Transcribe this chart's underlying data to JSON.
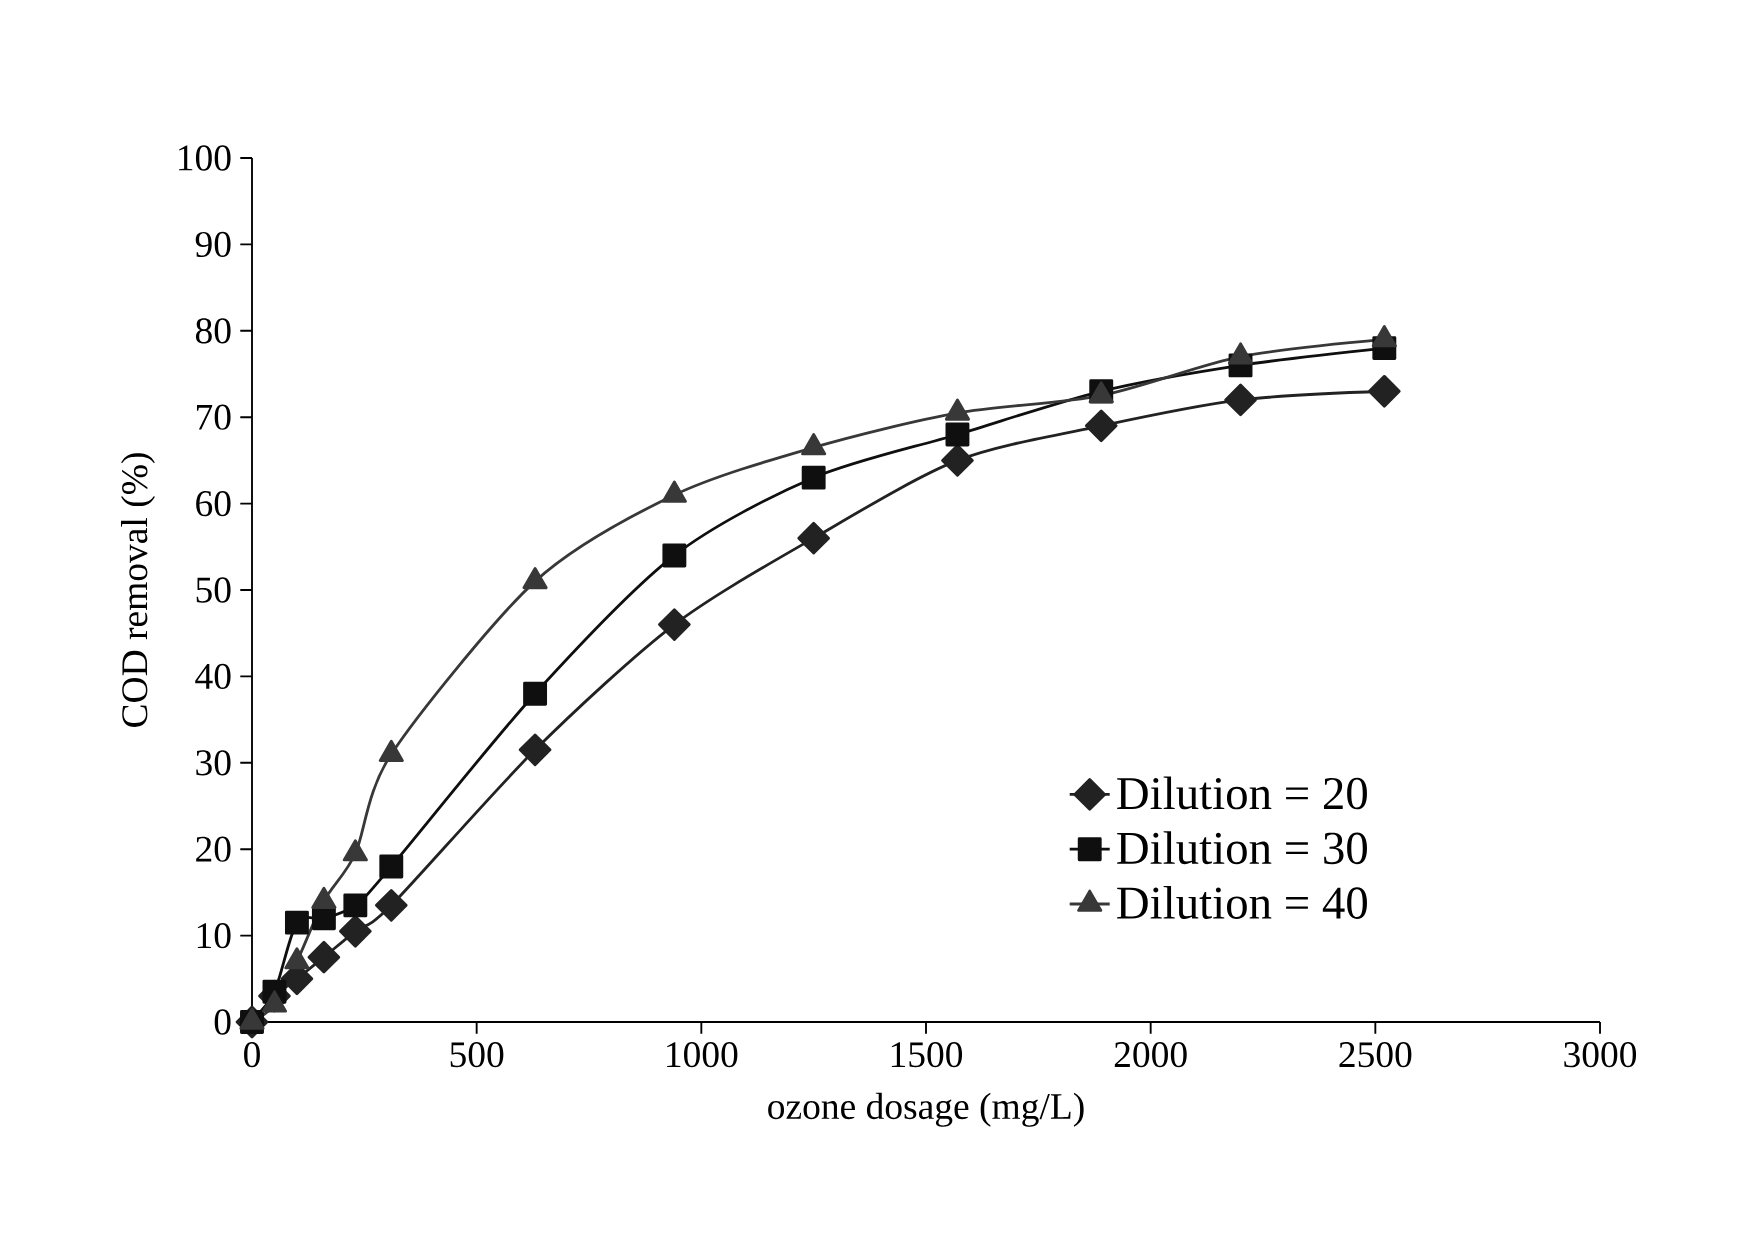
{
  "chart_data": {
    "type": "line",
    "xlabel": "ozone dosage (mg/L)",
    "ylabel": "COD removal (%)",
    "xlim": [
      0,
      3000
    ],
    "ylim": [
      0,
      100
    ],
    "xticks": [
      0,
      500,
      1000,
      1500,
      2000,
      2500,
      3000
    ],
    "yticks": [
      0,
      10,
      20,
      30,
      40,
      50,
      60,
      70,
      80,
      90,
      100
    ],
    "grid": false,
    "legend": "right",
    "line_style": "solid",
    "x": [
      0,
      50,
      100,
      160,
      230,
      310,
      630,
      940,
      1250,
      1570,
      1890,
      2200,
      2520
    ],
    "series": [
      {
        "name": "Dilution = 20",
        "color": "#222222",
        "marker": "diamond",
        "values": [
          0,
          3,
          5,
          7.5,
          10.5,
          13.5,
          31.5,
          46,
          56,
          65,
          69,
          72,
          73
        ]
      },
      {
        "name": "Dilution = 30",
        "color": "#0f0f0f",
        "marker": "square",
        "values": [
          0,
          3.5,
          11.5,
          12,
          13.5,
          18,
          38,
          54,
          63,
          68,
          73,
          76,
          78
        ]
      },
      {
        "name": "Dilution = 40",
        "color": "#383838",
        "marker": "triangle",
        "values": [
          0,
          2,
          7,
          14,
          19.5,
          31,
          51,
          61,
          66.5,
          70.5,
          72.5,
          77,
          79
        ]
      }
    ]
  }
}
